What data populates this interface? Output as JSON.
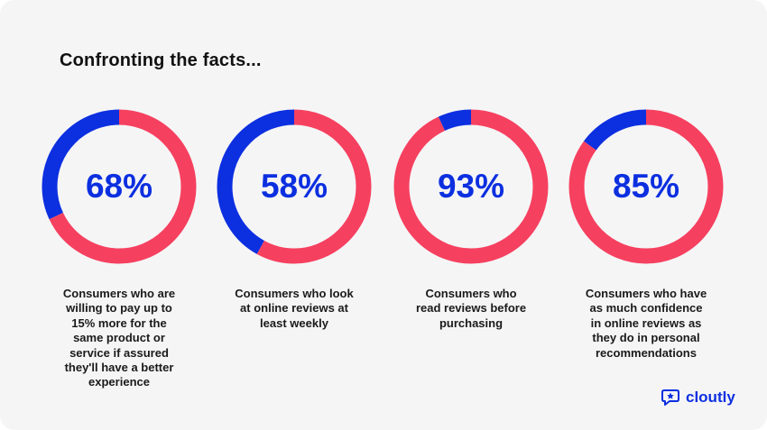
{
  "title": "Confronting the facts...",
  "brand": {
    "name": "cloutly",
    "icon": "speech-bubble-star-icon"
  },
  "colors": {
    "accent": "#0c2fe0",
    "ring_fill": "#f6405f"
  },
  "chart_data": [
    {
      "type": "pie",
      "style": "donut",
      "value": 68,
      "label": "68%",
      "description": "Consumers who are\nwilling to pay up to\n15% more for the\nsame product or\nservice if assured\nthey'll have a better\nexperience"
    },
    {
      "type": "pie",
      "style": "donut",
      "value": 58,
      "label": "58%",
      "description": "Consumers who look\nat online reviews at\nleast weekly"
    },
    {
      "type": "pie",
      "style": "donut",
      "value": 93,
      "label": "93%",
      "description": "Consumers who\nread reviews before\npurchasing"
    },
    {
      "type": "pie",
      "style": "donut",
      "value": 85,
      "label": "85%",
      "description": "Consumers who have\nas much confidence\nin online reviews as\nthey do in personal\nrecommendations"
    }
  ]
}
